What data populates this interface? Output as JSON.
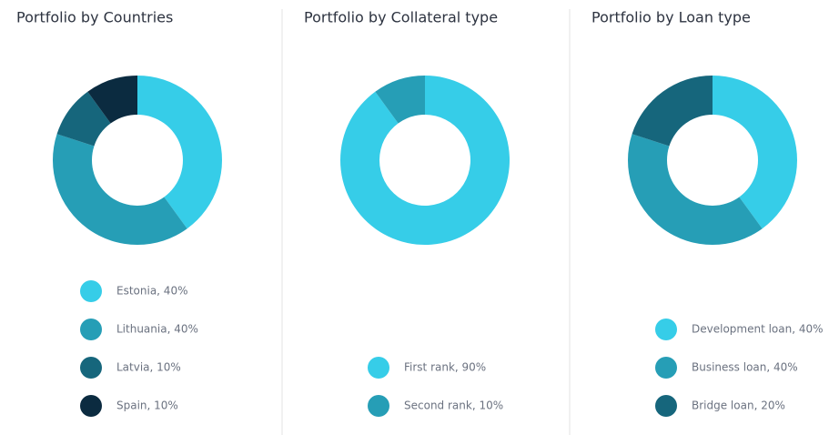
{
  "chart_data": [
    {
      "type": "donut",
      "title": "Portfolio by Countries",
      "categories": [
        "Estonia, 40%",
        "Lithuania, 40%",
        "Latvia, 10%",
        "Spain, 10%"
      ],
      "values": [
        40,
        40,
        10,
        10
      ],
      "colors": [
        "#36cde8",
        "#269eb6",
        "#16667c",
        "#0b2b40"
      ]
    },
    {
      "type": "donut",
      "title": "Portfolio by Collateral type",
      "categories": [
        "First rank, 90%",
        "Second rank, 10%"
      ],
      "values": [
        90,
        10
      ],
      "colors": [
        "#36cde8",
        "#269eb6"
      ]
    },
    {
      "type": "donut",
      "title": "Portfolio by Loan type",
      "categories": [
        "Development loan, 40%",
        "Business loan, 40%",
        "Bridge loan, 20%"
      ],
      "values": [
        40,
        40,
        20
      ],
      "colors": [
        "#36cde8",
        "#269eb6",
        "#16667c"
      ]
    }
  ]
}
